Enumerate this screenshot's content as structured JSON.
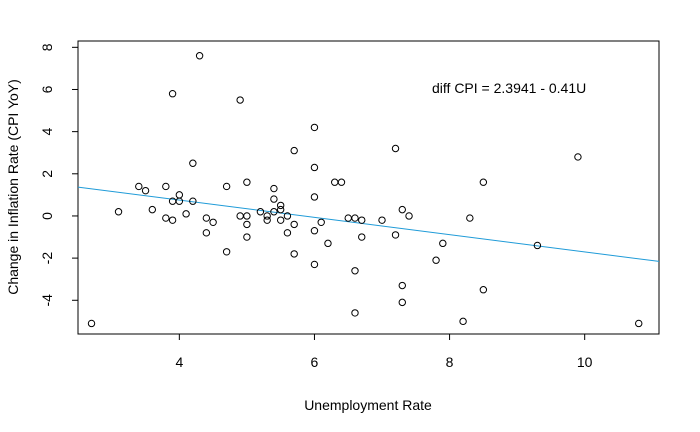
{
  "chart_data": {
    "type": "scatter",
    "title": "",
    "xlabel": "Unemployment Rate",
    "ylabel": "Change in Inflation Rate (CPI YoY)",
    "xlim": [
      2.5,
      11.1
    ],
    "ylim": [
      -5.6,
      8.3
    ],
    "xticks": [
      4,
      6,
      8,
      10
    ],
    "yticks": [
      -4,
      -2,
      0,
      2,
      4,
      6,
      8
    ],
    "xtick_labels": [
      "4",
      "6",
      "8",
      "10"
    ],
    "ytick_labels": [
      "-4",
      "-2",
      "0",
      "2",
      "4",
      "6",
      "8"
    ],
    "grid": false,
    "annotation": "diff CPI = 2.3941 - 0.41U",
    "regression": {
      "intercept": 2.3941,
      "slope": -0.41,
      "color": "#1f9bd8"
    },
    "points": [
      {
        "x": 2.7,
        "y": -5.1
      },
      {
        "x": 3.1,
        "y": 0.2
      },
      {
        "x": 3.4,
        "y": 1.4
      },
      {
        "x": 3.5,
        "y": 1.2
      },
      {
        "x": 3.6,
        "y": 0.3
      },
      {
        "x": 3.8,
        "y": 1.4
      },
      {
        "x": 3.8,
        "y": -0.1
      },
      {
        "x": 3.9,
        "y": 5.8
      },
      {
        "x": 3.9,
        "y": -0.2
      },
      {
        "x": 3.9,
        "y": 0.7
      },
      {
        "x": 4.0,
        "y": 1.0
      },
      {
        "x": 4.0,
        "y": 0.7
      },
      {
        "x": 4.1,
        "y": 0.1
      },
      {
        "x": 4.2,
        "y": 2.5
      },
      {
        "x": 4.2,
        "y": 0.7
      },
      {
        "x": 4.3,
        "y": 7.6
      },
      {
        "x": 4.4,
        "y": -0.1
      },
      {
        "x": 4.4,
        "y": -0.8
      },
      {
        "x": 4.5,
        "y": -0.3
      },
      {
        "x": 4.7,
        "y": 1.4
      },
      {
        "x": 4.7,
        "y": -1.7
      },
      {
        "x": 4.9,
        "y": 5.5
      },
      {
        "x": 4.9,
        "y": 0.0
      },
      {
        "x": 5.0,
        "y": 1.6
      },
      {
        "x": 5.0,
        "y": 0.0
      },
      {
        "x": 5.0,
        "y": -0.4
      },
      {
        "x": 5.0,
        "y": -1.0
      },
      {
        "x": 5.2,
        "y": 0.2
      },
      {
        "x": 5.3,
        "y": 0.0
      },
      {
        "x": 5.3,
        "y": -0.2
      },
      {
        "x": 5.4,
        "y": 1.3
      },
      {
        "x": 5.4,
        "y": 0.8
      },
      {
        "x": 5.4,
        "y": 0.2
      },
      {
        "x": 5.5,
        "y": 0.5
      },
      {
        "x": 5.5,
        "y": 0.3
      },
      {
        "x": 5.5,
        "y": -0.2
      },
      {
        "x": 5.6,
        "y": 0.0
      },
      {
        "x": 5.6,
        "y": -0.8
      },
      {
        "x": 5.7,
        "y": 3.1
      },
      {
        "x": 5.7,
        "y": -0.4
      },
      {
        "x": 5.7,
        "y": -1.8
      },
      {
        "x": 6.0,
        "y": 4.2
      },
      {
        "x": 6.0,
        "y": 2.3
      },
      {
        "x": 6.0,
        "y": 0.9
      },
      {
        "x": 6.0,
        "y": -0.7
      },
      {
        "x": 6.0,
        "y": -2.3
      },
      {
        "x": 6.1,
        "y": -0.3
      },
      {
        "x": 6.2,
        "y": -1.3
      },
      {
        "x": 6.3,
        "y": 1.6
      },
      {
        "x": 6.4,
        "y": 1.6
      },
      {
        "x": 6.5,
        "y": -0.1
      },
      {
        "x": 6.6,
        "y": -0.1
      },
      {
        "x": 6.6,
        "y": -2.6
      },
      {
        "x": 6.6,
        "y": -4.6
      },
      {
        "x": 6.7,
        "y": -0.2
      },
      {
        "x": 6.7,
        "y": -1.0
      },
      {
        "x": 7.0,
        "y": -0.2
      },
      {
        "x": 7.2,
        "y": 3.2
      },
      {
        "x": 7.2,
        "y": -0.9
      },
      {
        "x": 7.3,
        "y": 0.3
      },
      {
        "x": 7.3,
        "y": -3.3
      },
      {
        "x": 7.3,
        "y": -4.1
      },
      {
        "x": 7.4,
        "y": 0.0
      },
      {
        "x": 7.8,
        "y": -2.1
      },
      {
        "x": 7.9,
        "y": -1.3
      },
      {
        "x": 8.2,
        "y": -5.0
      },
      {
        "x": 8.3,
        "y": -0.1
      },
      {
        "x": 8.5,
        "y": 1.6
      },
      {
        "x": 8.5,
        "y": -3.5
      },
      {
        "x": 9.3,
        "y": -1.4
      },
      {
        "x": 9.9,
        "y": 2.8
      },
      {
        "x": 10.8,
        "y": -5.1
      }
    ]
  }
}
